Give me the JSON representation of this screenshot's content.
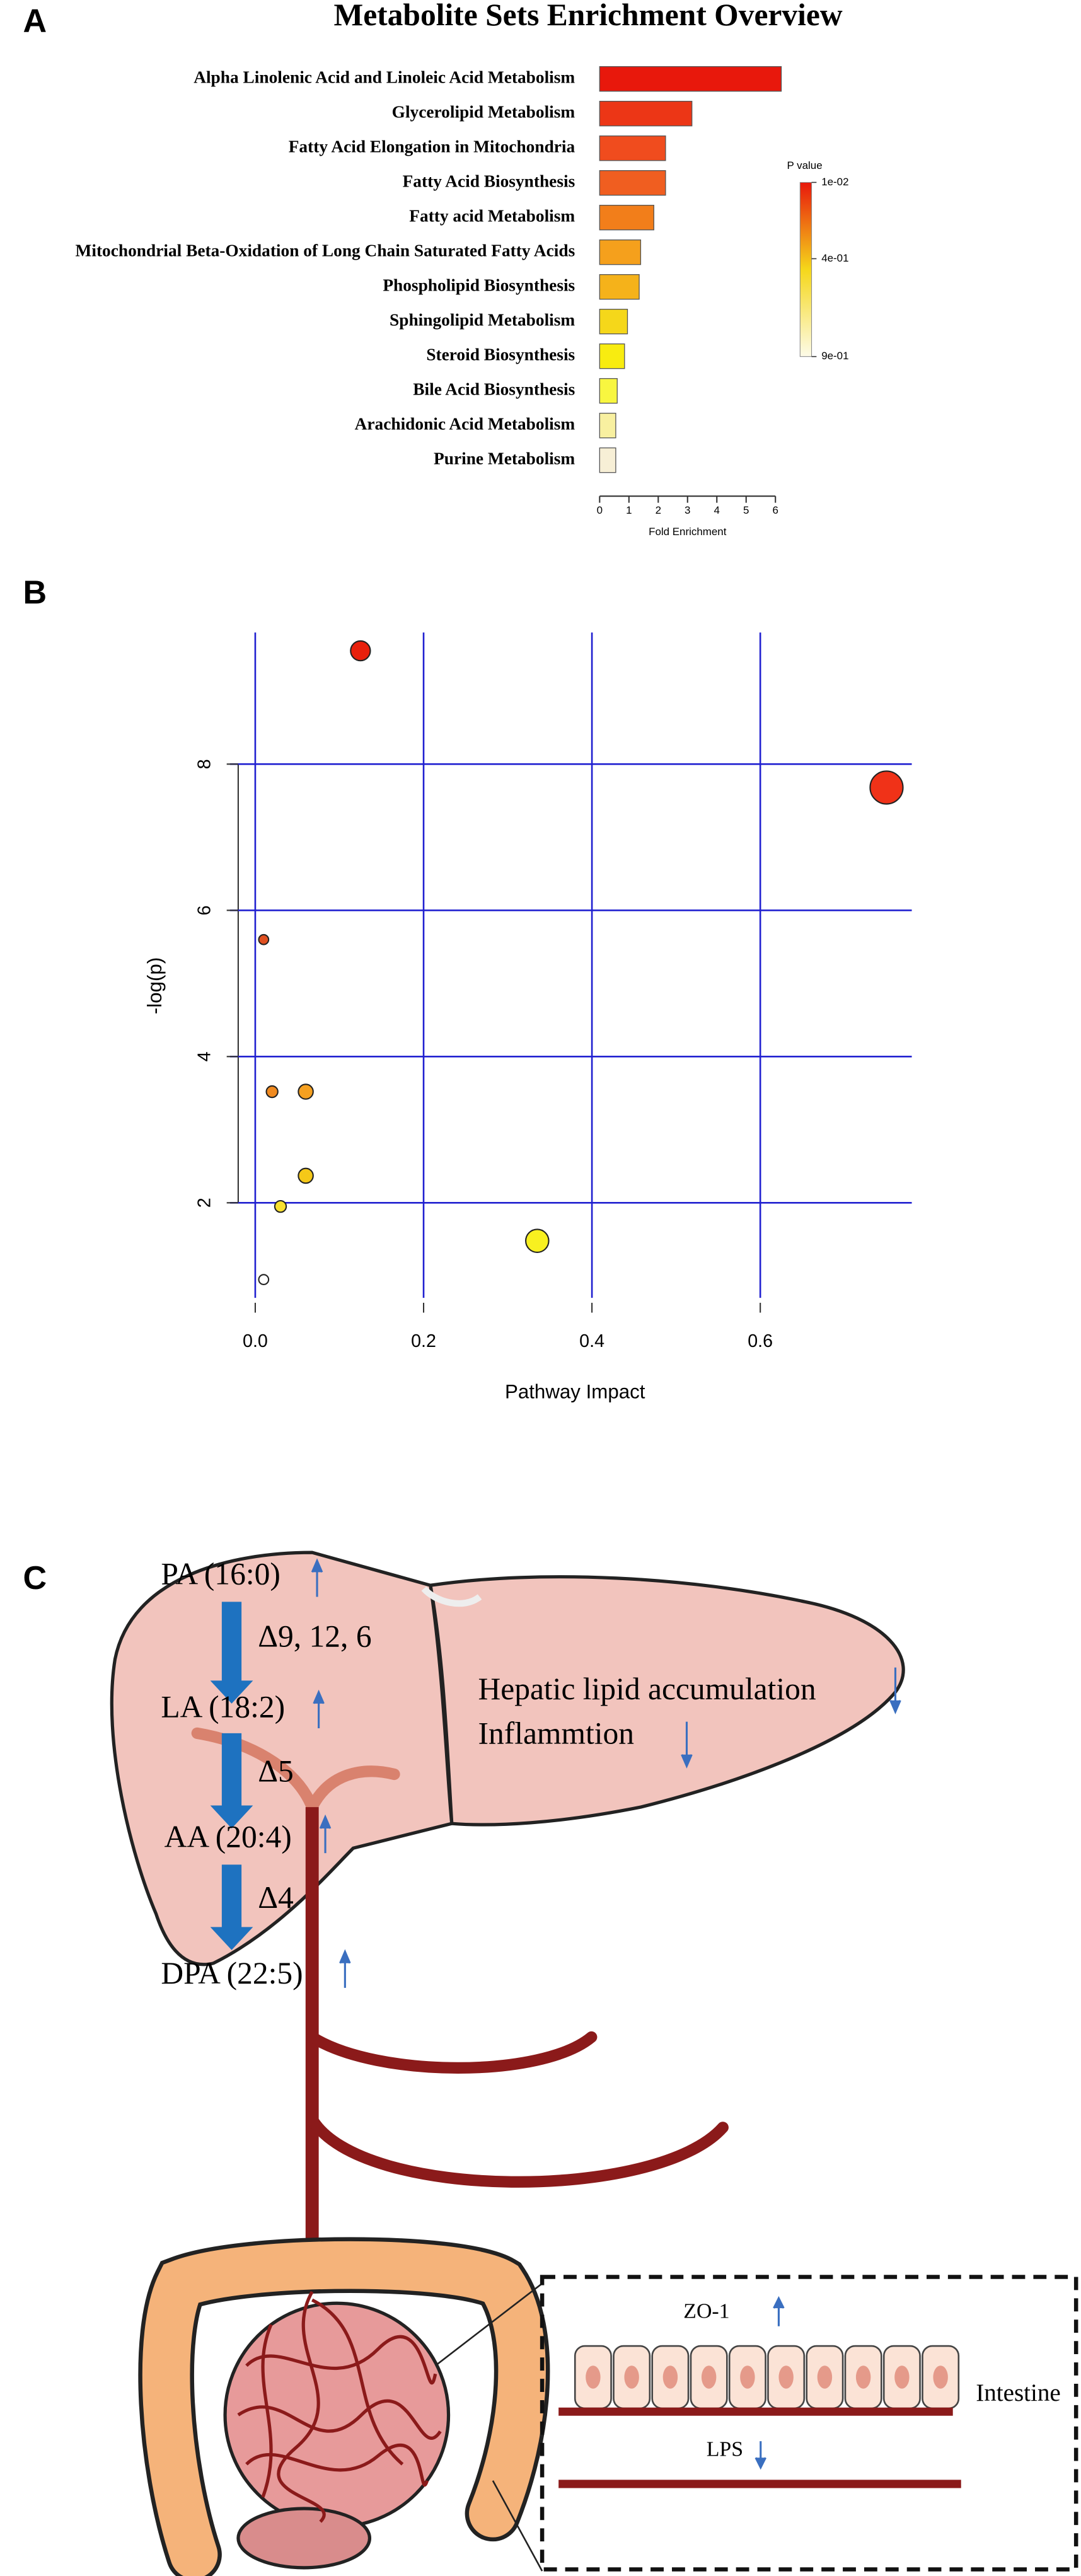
{
  "panel_labels": [
    "A",
    "B",
    "C"
  ],
  "chart_data": [
    {
      "type": "barh",
      "title": "Metabolite Sets Enrichment Overview",
      "categories": [
        "Alpha Linolenic Acid and Linoleic Acid Metabolism",
        "Glycerolipid Metabolism",
        "Fatty Acid Elongation in Mitochondria",
        "Fatty Acid Biosynthesis",
        "Fatty acid Metabolism",
        "Mitochondrial Beta-Oxidation of Long Chain Saturated Fatty Acids",
        "Phospholipid Biosynthesis",
        "Sphingolipid Metabolism",
        "Steroid Biosynthesis",
        "Bile Acid Biosynthesis",
        "Arachidonic Acid Metabolism",
        "Purine Metabolism"
      ],
      "values": [
        6.2,
        3.15,
        2.25,
        2.25,
        1.85,
        1.4,
        1.35,
        0.95,
        0.85,
        0.6,
        0.55,
        0.55
      ],
      "colors": [
        "#e8180c",
        "#ec3616",
        "#f04c1e",
        "#f05e20",
        "#f27e1a",
        "#f5a01c",
        "#f5b21a",
        "#f5d71a",
        "#f8ec10",
        "#f8f640",
        "#f8f0a0",
        "#f7efd6"
      ],
      "xlabel": "Fold Enrichment",
      "xlim": [
        0,
        6
      ],
      "xticks": [
        0,
        1,
        2,
        3,
        4,
        5,
        6
      ],
      "legend": {
        "title": "P value",
        "clim": [
          0.01,
          0.9
        ],
        "colors": [
          "#e8180c",
          "#f5d71a",
          "#fdfbe8"
        ],
        "ticks": [
          {
            "value": 0.01,
            "label": "1e-02"
          },
          {
            "value": 0.4,
            "label": "4e-01"
          },
          {
            "value": 0.9,
            "label": "9e-01"
          }
        ]
      }
    },
    {
      "type": "scatter",
      "xlabel": "Pathway Impact",
      "ylabel": "-log(p)",
      "x": [
        0.125,
        0.75,
        0.01,
        0.02,
        0.06,
        0.06,
        0.03,
        0.335,
        0.01
      ],
      "values": [
        9.55,
        7.68,
        5.6,
        3.52,
        3.52,
        2.37,
        1.95,
        1.48,
        0.95
      ],
      "sizes": [
        6,
        10,
        3,
        3.5,
        4.5,
        4.5,
        3.5,
        7,
        3
      ],
      "colors": [
        "#e8200c",
        "#f03218",
        "#e05020",
        "#f08a20",
        "#f5a020",
        "#f5c818",
        "#f8e030",
        "#f8f020",
        "#ffffff"
      ],
      "xlim": [
        -0.03,
        0.78
      ],
      "ylim": [
        0.7,
        9.8
      ],
      "xticks": [
        {
          "value": 0,
          "label": "0.0"
        },
        0.2,
        0.4,
        0.6
      ],
      "yticks": [
        2,
        4,
        6,
        8
      ],
      "grid": true,
      "grid_color": "#2020d0"
    }
  ],
  "diagram": {
    "liver": {
      "fatty_acids": [
        "PA (16:0)",
        "LA (18:2)",
        "AA (20:4)",
        "DPA (22:5)"
      ],
      "enzymes": [
        "Δ9, 12, 6",
        "Δ5",
        "Δ4"
      ],
      "effects": [
        "Hepatic lipid accumulation",
        "Inflammtion"
      ]
    },
    "intestine": {
      "markers": [
        "ZO-1",
        "LPS"
      ],
      "label": "Intestine"
    }
  }
}
